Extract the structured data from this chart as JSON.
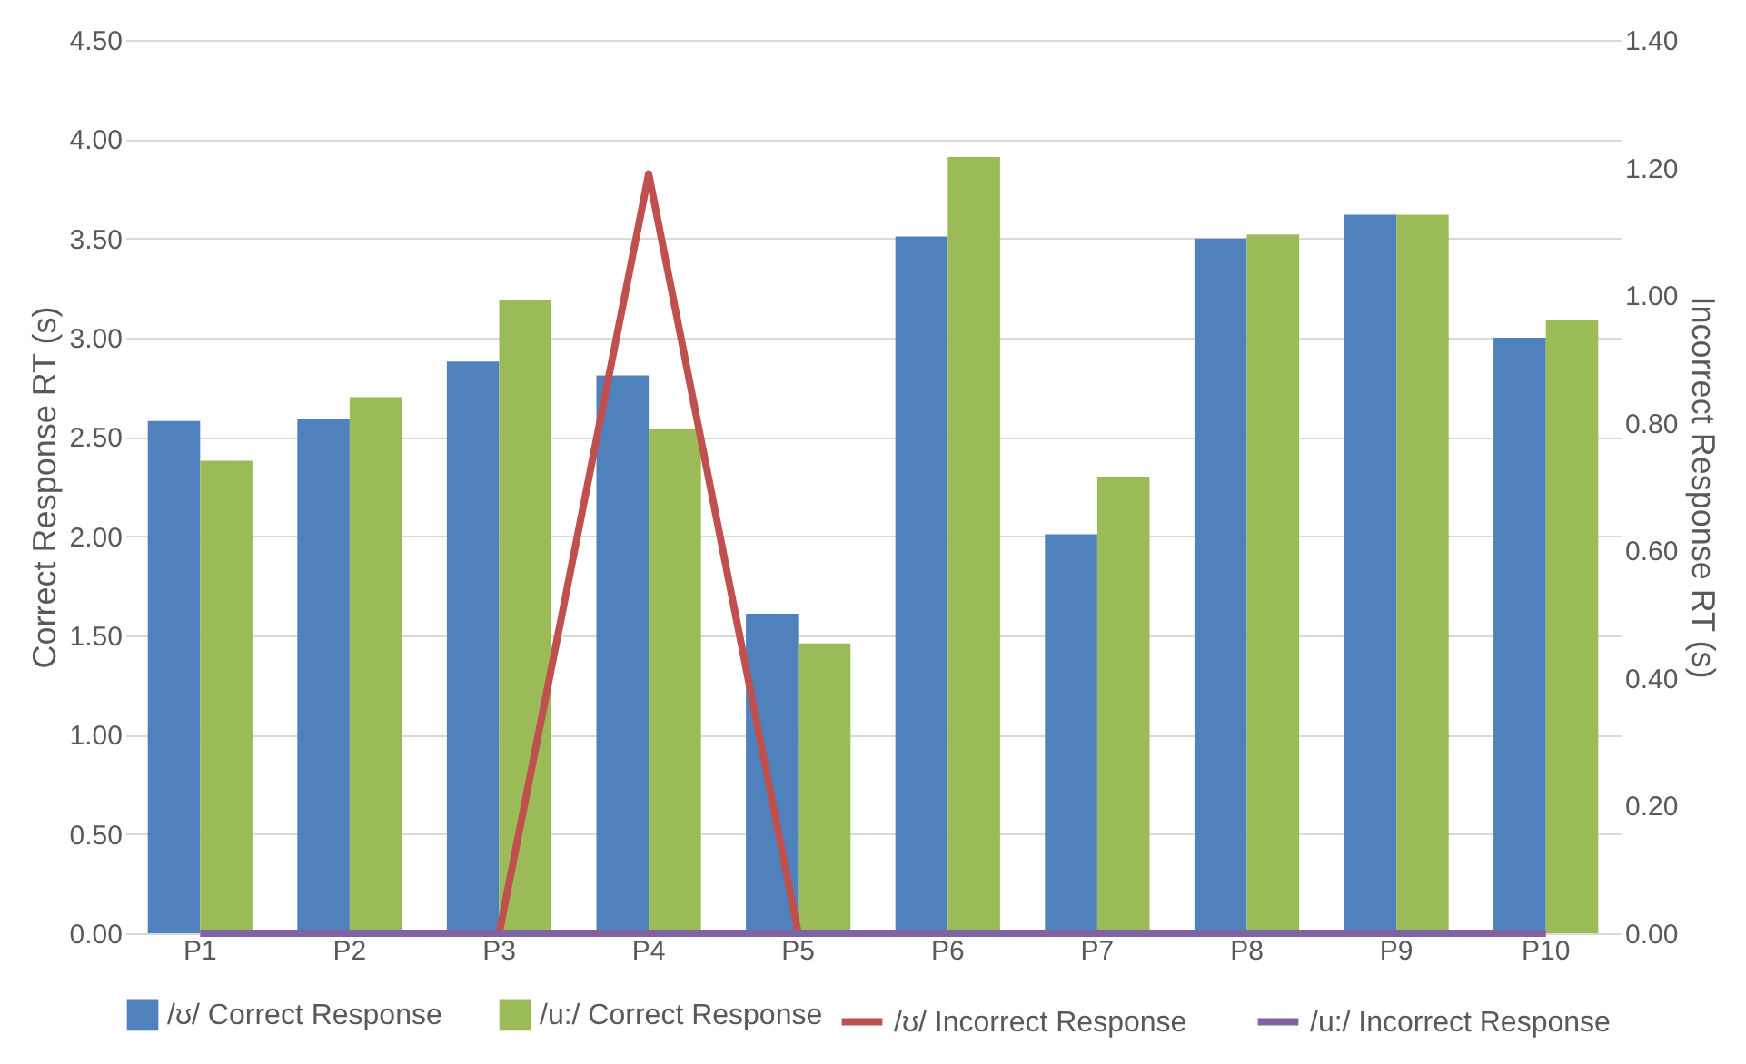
{
  "chart_data": {
    "type": "bar",
    "ylabel": "Correct Response RT (s)",
    "y2label": "Incorrect Response RT (s)",
    "categories": [
      "P1",
      "P2",
      "P3",
      "P4",
      "P5",
      "P6",
      "P7",
      "P8",
      "P9",
      "P10"
    ],
    "series": [
      {
        "name": "/ʊ/ Correct Response",
        "color": "#4f81bd",
        "values": [
          2.58,
          2.59,
          2.88,
          2.81,
          1.61,
          3.51,
          2.01,
          3.5,
          3.62,
          3.0
        ]
      },
      {
        "name": "/u:/ Correct Response",
        "color": "#9bbb59",
        "values": [
          2.38,
          2.7,
          3.19,
          2.54,
          1.46,
          3.91,
          2.3,
          3.52,
          3.62,
          3.09
        ]
      },
      {
        "name": "/ʊ/ Incorrect Response",
        "type": "line",
        "axis": "y2",
        "color": "#c0504d",
        "values": [
          null,
          null,
          0,
          1.19,
          0,
          null,
          null,
          null,
          null,
          null
        ]
      },
      {
        "name": "/u:/ Incorrect Response",
        "type": "line",
        "axis": "y2",
        "color": "#8064a2",
        "values": [
          0,
          0,
          0,
          0,
          0,
          0,
          0,
          0,
          0,
          0
        ]
      }
    ],
    "ylim": [
      0,
      4.5
    ],
    "yticks": [
      {
        "value": 0,
        "label": "0.00"
      },
      {
        "value": 0.5,
        "label": "0.50"
      },
      {
        "value": 1,
        "label": "1.00"
      },
      {
        "value": 1.5,
        "label": "1.50"
      },
      {
        "value": 2,
        "label": "2.00"
      },
      {
        "value": 2.5,
        "label": "2.50"
      },
      {
        "value": 3,
        "label": "3.00"
      },
      {
        "value": 3.5,
        "label": "3.50"
      },
      {
        "value": 4,
        "label": "4.00"
      },
      {
        "value": 4.5,
        "label": "4.50"
      }
    ],
    "y2lim": [
      0,
      1.4
    ],
    "y2ticks": [
      {
        "value": 0,
        "label": "0.00"
      },
      {
        "value": 0.2,
        "label": "0.20"
      },
      {
        "value": 0.4,
        "label": "0.40"
      },
      {
        "value": 0.6,
        "label": "0.60"
      },
      {
        "value": 0.8,
        "label": "0.80"
      },
      {
        "value": 1,
        "label": "1.00"
      },
      {
        "value": 1.2,
        "label": "1.20"
      },
      {
        "value": 1.4,
        "label": "1.40"
      }
    ],
    "grid": "y",
    "legend": "bottom",
    "marker": "none",
    "line_style": "solid"
  }
}
